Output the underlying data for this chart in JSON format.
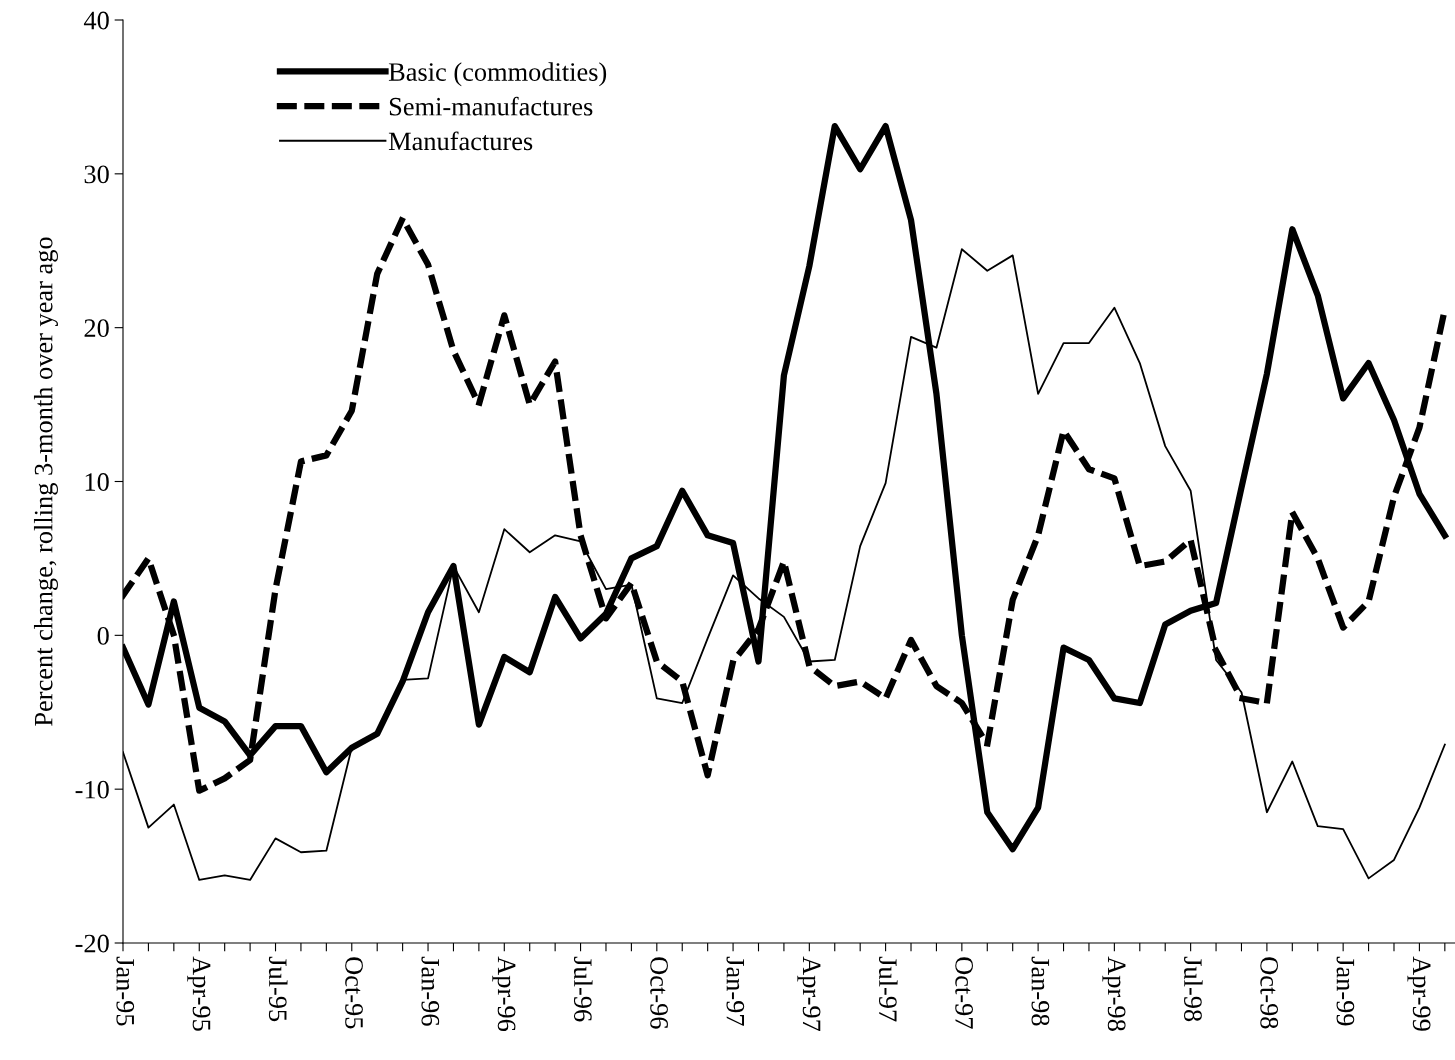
{
  "chart_data": {
    "type": "line",
    "ylabel": "Percent change, rolling 3-month over year ago",
    "categories": [
      "Jan-95",
      null,
      null,
      "Apr-95",
      null,
      null,
      "Jul-95",
      null,
      null,
      "Oct-95",
      null,
      null,
      "Jan-96",
      null,
      null,
      "Apr-96",
      null,
      null,
      "Jul-96",
      null,
      null,
      "Oct-96",
      null,
      null,
      "Jan-97",
      null,
      null,
      "Apr-97",
      null,
      null,
      "Jul-97",
      null,
      null,
      "Oct-97",
      null,
      null,
      "Jan-98",
      null,
      null,
      "Apr-98",
      null,
      null,
      "Jul-98",
      null,
      null,
      "Oct-98",
      null,
      null,
      "Jan-99",
      null,
      null,
      "Apr-99",
      null
    ],
    "series": [
      {
        "name": "Basic (commodities)",
        "color": "#000000",
        "line_style": "solid",
        "values": [
          -0.8,
          -4.5,
          2.2,
          -4.7,
          -5.6,
          -7.8,
          -5.9,
          -5.9,
          -8.9,
          -7.3,
          -6.4,
          -3,
          1.5,
          4.5,
          -5.8,
          -1.4,
          -2.4,
          2.5,
          -0.2,
          1.4,
          5,
          5.8,
          9.4,
          6.5,
          6,
          -1.7,
          16.9,
          24,
          33.1,
          30.3,
          33.1,
          27,
          15.7,
          0,
          -11.5,
          -13.9,
          -11.2,
          -0.8,
          -1.6,
          -4.1,
          -4.4,
          0.7,
          1.6,
          2.1,
          9.6,
          17,
          26.4,
          22.1,
          15.4,
          17.7,
          14,
          9.2,
          6.5
        ]
      },
      {
        "name": "Semi-manufactures",
        "color": "#000000",
        "line_style": "dashed",
        "values": [
          2.6,
          5,
          0,
          -10.1,
          -9.3,
          -8.1,
          3,
          11.3,
          11.7,
          14.6,
          23.5,
          27.1,
          24.1,
          18.5,
          15,
          20.8,
          15,
          17.8,
          6.5,
          1.1,
          3.4,
          -1.7,
          -3,
          -9.1,
          -1.7,
          0.4,
          4.8,
          -2,
          -3.3,
          -3,
          -4.1,
          -0.3,
          -3.3,
          -4.4,
          -7.1,
          2.3,
          6.5,
          13.3,
          10.8,
          10.2,
          4.5,
          4.8,
          6.2,
          -1,
          -4.1,
          -4.4,
          8,
          5,
          0.5,
          2.2,
          9,
          13.5,
          21.2
        ]
      },
      {
        "name": "Manufactures",
        "color": "#000000",
        "line_style": "solid",
        "values": [
          -7.6,
          -12.5,
          -11,
          -15.9,
          -15.6,
          -15.9,
          -13.2,
          -14.1,
          -14,
          -7.3,
          -6.4,
          -2.9,
          -2.8,
          4.5,
          1.5,
          6.9,
          5.4,
          6.5,
          6.1,
          3,
          3.3,
          -4.1,
          -4.4,
          -0.2,
          3.9,
          2.4,
          1.2,
          -1.7,
          -1.6,
          5.8,
          9.9,
          19.4,
          18.7,
          25.1,
          23.7,
          24.7,
          15.7,
          19,
          19,
          21.3,
          17.7,
          12.3,
          9.4,
          -1.6,
          -3.7,
          -11.5,
          -8.2,
          -12.4,
          -12.6,
          -15.8,
          -14.6,
          -11.2,
          -7.1
        ]
      }
    ],
    "ylim": [
      -20,
      40
    ],
    "yticks": [
      -20,
      -10,
      0,
      10,
      20,
      30,
      40
    ],
    "grid": false,
    "legend": "top left",
    "marker": "none"
  }
}
